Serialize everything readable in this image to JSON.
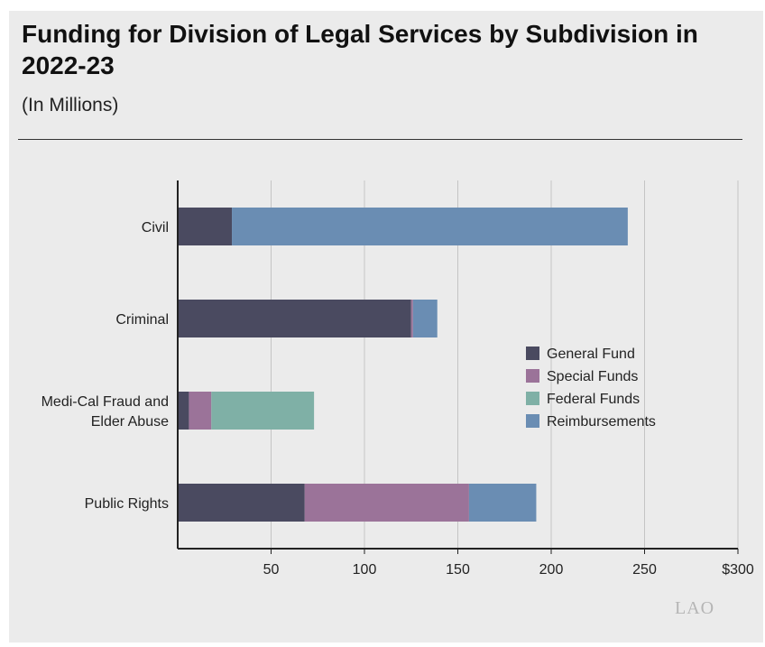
{
  "header": {
    "title": "Funding for Division of Legal Services by Subdivision in 2022-23",
    "subtitle": "(In Millions)"
  },
  "logo": {
    "text": "LAO"
  },
  "chart_data": {
    "type": "bar",
    "orientation": "horizontal",
    "stacked": true,
    "title": "Funding for Division of Legal Services by Subdivision in 2022-23",
    "subtitle": "(In Millions)",
    "categories": [
      "Civil",
      "Criminal",
      "Medi-Cal Fraud and Elder Abuse",
      "Public Rights"
    ],
    "category_lines": [
      [
        "Civil"
      ],
      [
        "Criminal"
      ],
      [
        "Medi-Cal Fraud and",
        "Elder Abuse"
      ],
      [
        "Public Rights"
      ]
    ],
    "series": [
      {
        "name": "General Fund",
        "color": "#4a4a60",
        "values": [
          29,
          125,
          6,
          68
        ]
      },
      {
        "name": "Special Funds",
        "color": "#9b7399",
        "values": [
          0,
          1,
          12,
          88
        ]
      },
      {
        "name": "Federal Funds",
        "color": "#7fb0a6",
        "values": [
          0,
          0,
          55,
          0
        ]
      },
      {
        "name": "Reimbursements",
        "color": "#6a8db3",
        "values": [
          212,
          13,
          0,
          36
        ]
      }
    ],
    "xlim": [
      0,
      300
    ],
    "x_ticks": [
      50,
      100,
      150,
      200,
      250,
      300
    ],
    "x_tick_labels": [
      "50",
      "100",
      "150",
      "200",
      "250",
      "$300"
    ],
    "grid": "vertical",
    "legend_position": "right"
  }
}
